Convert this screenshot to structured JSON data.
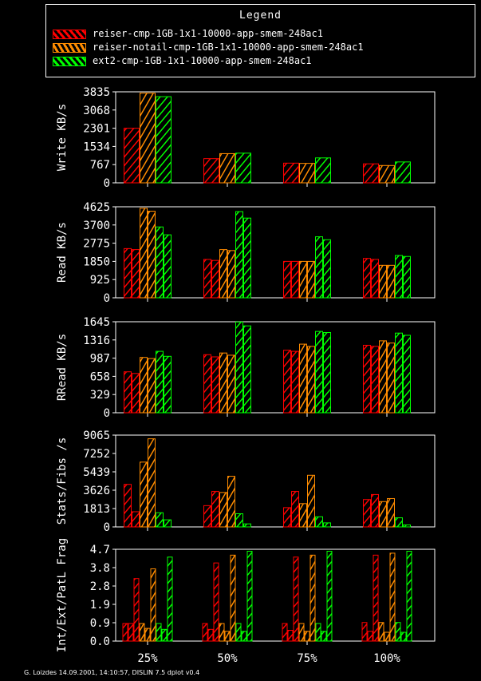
{
  "legend": {
    "title": "Legend",
    "items": [
      {
        "label": "reiser-cmp-1GB-1x1-10000-app-smem-248ac1",
        "color": "#ff0000"
      },
      {
        "label": "reiser-notail-cmp-1GB-1x1-10000-app-smem-248ac1",
        "color": "#ff8c00"
      },
      {
        "label": "ext2-cmp-1GB-1x1-10000-app-smem-248ac1",
        "color": "#00ff00"
      }
    ]
  },
  "footer": "G. Loizdes 14.09.2001, 14:10:57, DISLIN 7.5 dplot v0.4",
  "chart_data": [
    {
      "type": "bar",
      "title": "",
      "xlabel": "",
      "ylabel": "Write KB/s",
      "categories": [
        "25%",
        "50%",
        "75%",
        "100%"
      ],
      "yticks": [
        "0",
        "767",
        "1534",
        "2301",
        "3068",
        "3835"
      ],
      "ylim": [
        0,
        3835
      ],
      "series": [
        {
          "name": "reiser-cmp-1GB-1x1-10000-app-smem-248ac1",
          "values": [
            [
              2300
            ],
            [
              1020
            ],
            [
              830
            ],
            [
              800
            ]
          ]
        },
        {
          "name": "reiser-notail-cmp-1GB-1x1-10000-app-smem-248ac1",
          "values": [
            [
              3780
            ],
            [
              1230
            ],
            [
              820
            ],
            [
              730
            ]
          ]
        },
        {
          "name": "ext2-cmp-1GB-1x1-10000-app-smem-248ac1",
          "values": [
            [
              3630
            ],
            [
              1250
            ],
            [
              1050
            ],
            [
              880
            ]
          ]
        }
      ]
    },
    {
      "type": "bar",
      "title": "",
      "xlabel": "",
      "ylabel": "Read KB/s",
      "categories": [
        "25%",
        "50%",
        "75%",
        "100%"
      ],
      "yticks": [
        "0",
        "925",
        "1850",
        "2775",
        "3700",
        "4625"
      ],
      "ylim": [
        0,
        4625
      ],
      "series": [
        {
          "name": "reiser-cmp-1GB-1x1-10000-app-smem-248ac1",
          "values": [
            [
              2500,
              2450
            ],
            [
              1950,
              1900
            ],
            [
              1850,
              1850
            ],
            [
              2000,
              1950
            ]
          ]
        },
        {
          "name": "reiser-notail-cmp-1GB-1x1-10000-app-smem-248ac1",
          "values": [
            [
              4550,
              4400
            ],
            [
              2450,
              2400
            ],
            [
              1850,
              1850
            ],
            [
              1650,
              1650
            ]
          ]
        },
        {
          "name": "ext2-cmp-1GB-1x1-10000-app-smem-248ac1",
          "values": [
            [
              3600,
              3200
            ],
            [
              4380,
              4050
            ],
            [
              3100,
              2950
            ],
            [
              2150,
              2100
            ]
          ]
        }
      ]
    },
    {
      "type": "bar",
      "title": "",
      "xlabel": "",
      "ylabel": "RRead KB/s",
      "categories": [
        "25%",
        "50%",
        "75%",
        "100%"
      ],
      "yticks": [
        "0",
        "329",
        "658",
        "987",
        "1316",
        "1645"
      ],
      "ylim": [
        0,
        1645
      ],
      "series": [
        {
          "name": "reiser-cmp-1GB-1x1-10000-app-smem-248ac1",
          "values": [
            [
              740,
              710
            ],
            [
              1050,
              1010
            ],
            [
              1130,
              1110
            ],
            [
              1220,
              1200
            ]
          ]
        },
        {
          "name": "reiser-notail-cmp-1GB-1x1-10000-app-smem-248ac1",
          "values": [
            [
              1000,
              980
            ],
            [
              1080,
              1040
            ],
            [
              1240,
              1200
            ],
            [
              1300,
              1260
            ]
          ]
        },
        {
          "name": "ext2-cmp-1GB-1x1-10000-app-smem-248ac1",
          "values": [
            [
              1110,
              1020
            ],
            [
              1640,
              1570
            ],
            [
              1470,
              1450
            ],
            [
              1440,
              1400
            ]
          ]
        }
      ]
    },
    {
      "type": "bar",
      "title": "",
      "xlabel": "",
      "ylabel": "Stats/Fibs /s",
      "categories": [
        "25%",
        "50%",
        "75%",
        "100%"
      ],
      "yticks": [
        "0",
        "1813",
        "3626",
        "5439",
        "7252",
        "9065"
      ],
      "ylim": [
        0,
        9065
      ],
      "series": [
        {
          "name": "reiser-cmp-1GB-1x1-10000-app-smem-248ac1",
          "values": [
            [
              4200,
              1500
            ],
            [
              2100,
              3500
            ],
            [
              1900,
              3500
            ],
            [
              2700,
              3200
            ]
          ]
        },
        {
          "name": "reiser-notail-cmp-1GB-1x1-10000-app-smem-248ac1",
          "values": [
            [
              6400,
              8700
            ],
            [
              3400,
              5000
            ],
            [
              2300,
              5100
            ],
            [
              2500,
              2800
            ]
          ]
        },
        {
          "name": "ext2-cmp-1GB-1x1-10000-app-smem-248ac1",
          "values": [
            [
              1400,
              700
            ],
            [
              1300,
              300
            ],
            [
              1000,
              400
            ],
            [
              900,
              200
            ]
          ]
        }
      ]
    },
    {
      "type": "bar",
      "title": "",
      "xlabel": "",
      "ylabel": "Int/Ext/PatL Frag",
      "categories": [
        "25%",
        "50%",
        "75%",
        "100%"
      ],
      "yticks": [
        "0.0",
        "0.9",
        "1.9",
        "2.8",
        "3.8",
        "4.7"
      ],
      "ylim": [
        0,
        4.7
      ],
      "series": [
        {
          "name": "reiser-cmp-1GB-1x1-10000-app-smem-248ac1",
          "values": [
            [
              0.9,
              0.9,
              3.2
            ],
            [
              0.9,
              0.6,
              4.0
            ],
            [
              0.9,
              0.55,
              4.3
            ],
            [
              0.95,
              0.5,
              4.4
            ]
          ]
        },
        {
          "name": "reiser-notail-cmp-1GB-1x1-10000-app-smem-248ac1",
          "values": [
            [
              0.9,
              0.65,
              3.7
            ],
            [
              0.9,
              0.5,
              4.4
            ],
            [
              0.9,
              0.5,
              4.4
            ],
            [
              0.95,
              0.45,
              4.5
            ]
          ]
        },
        {
          "name": "ext2-cmp-1GB-1x1-10000-app-smem-248ac1",
          "values": [
            [
              0.9,
              0.6,
              4.3
            ],
            [
              0.9,
              0.5,
              4.6
            ],
            [
              0.9,
              0.5,
              4.6
            ],
            [
              0.95,
              0.45,
              4.6
            ]
          ]
        }
      ]
    }
  ]
}
